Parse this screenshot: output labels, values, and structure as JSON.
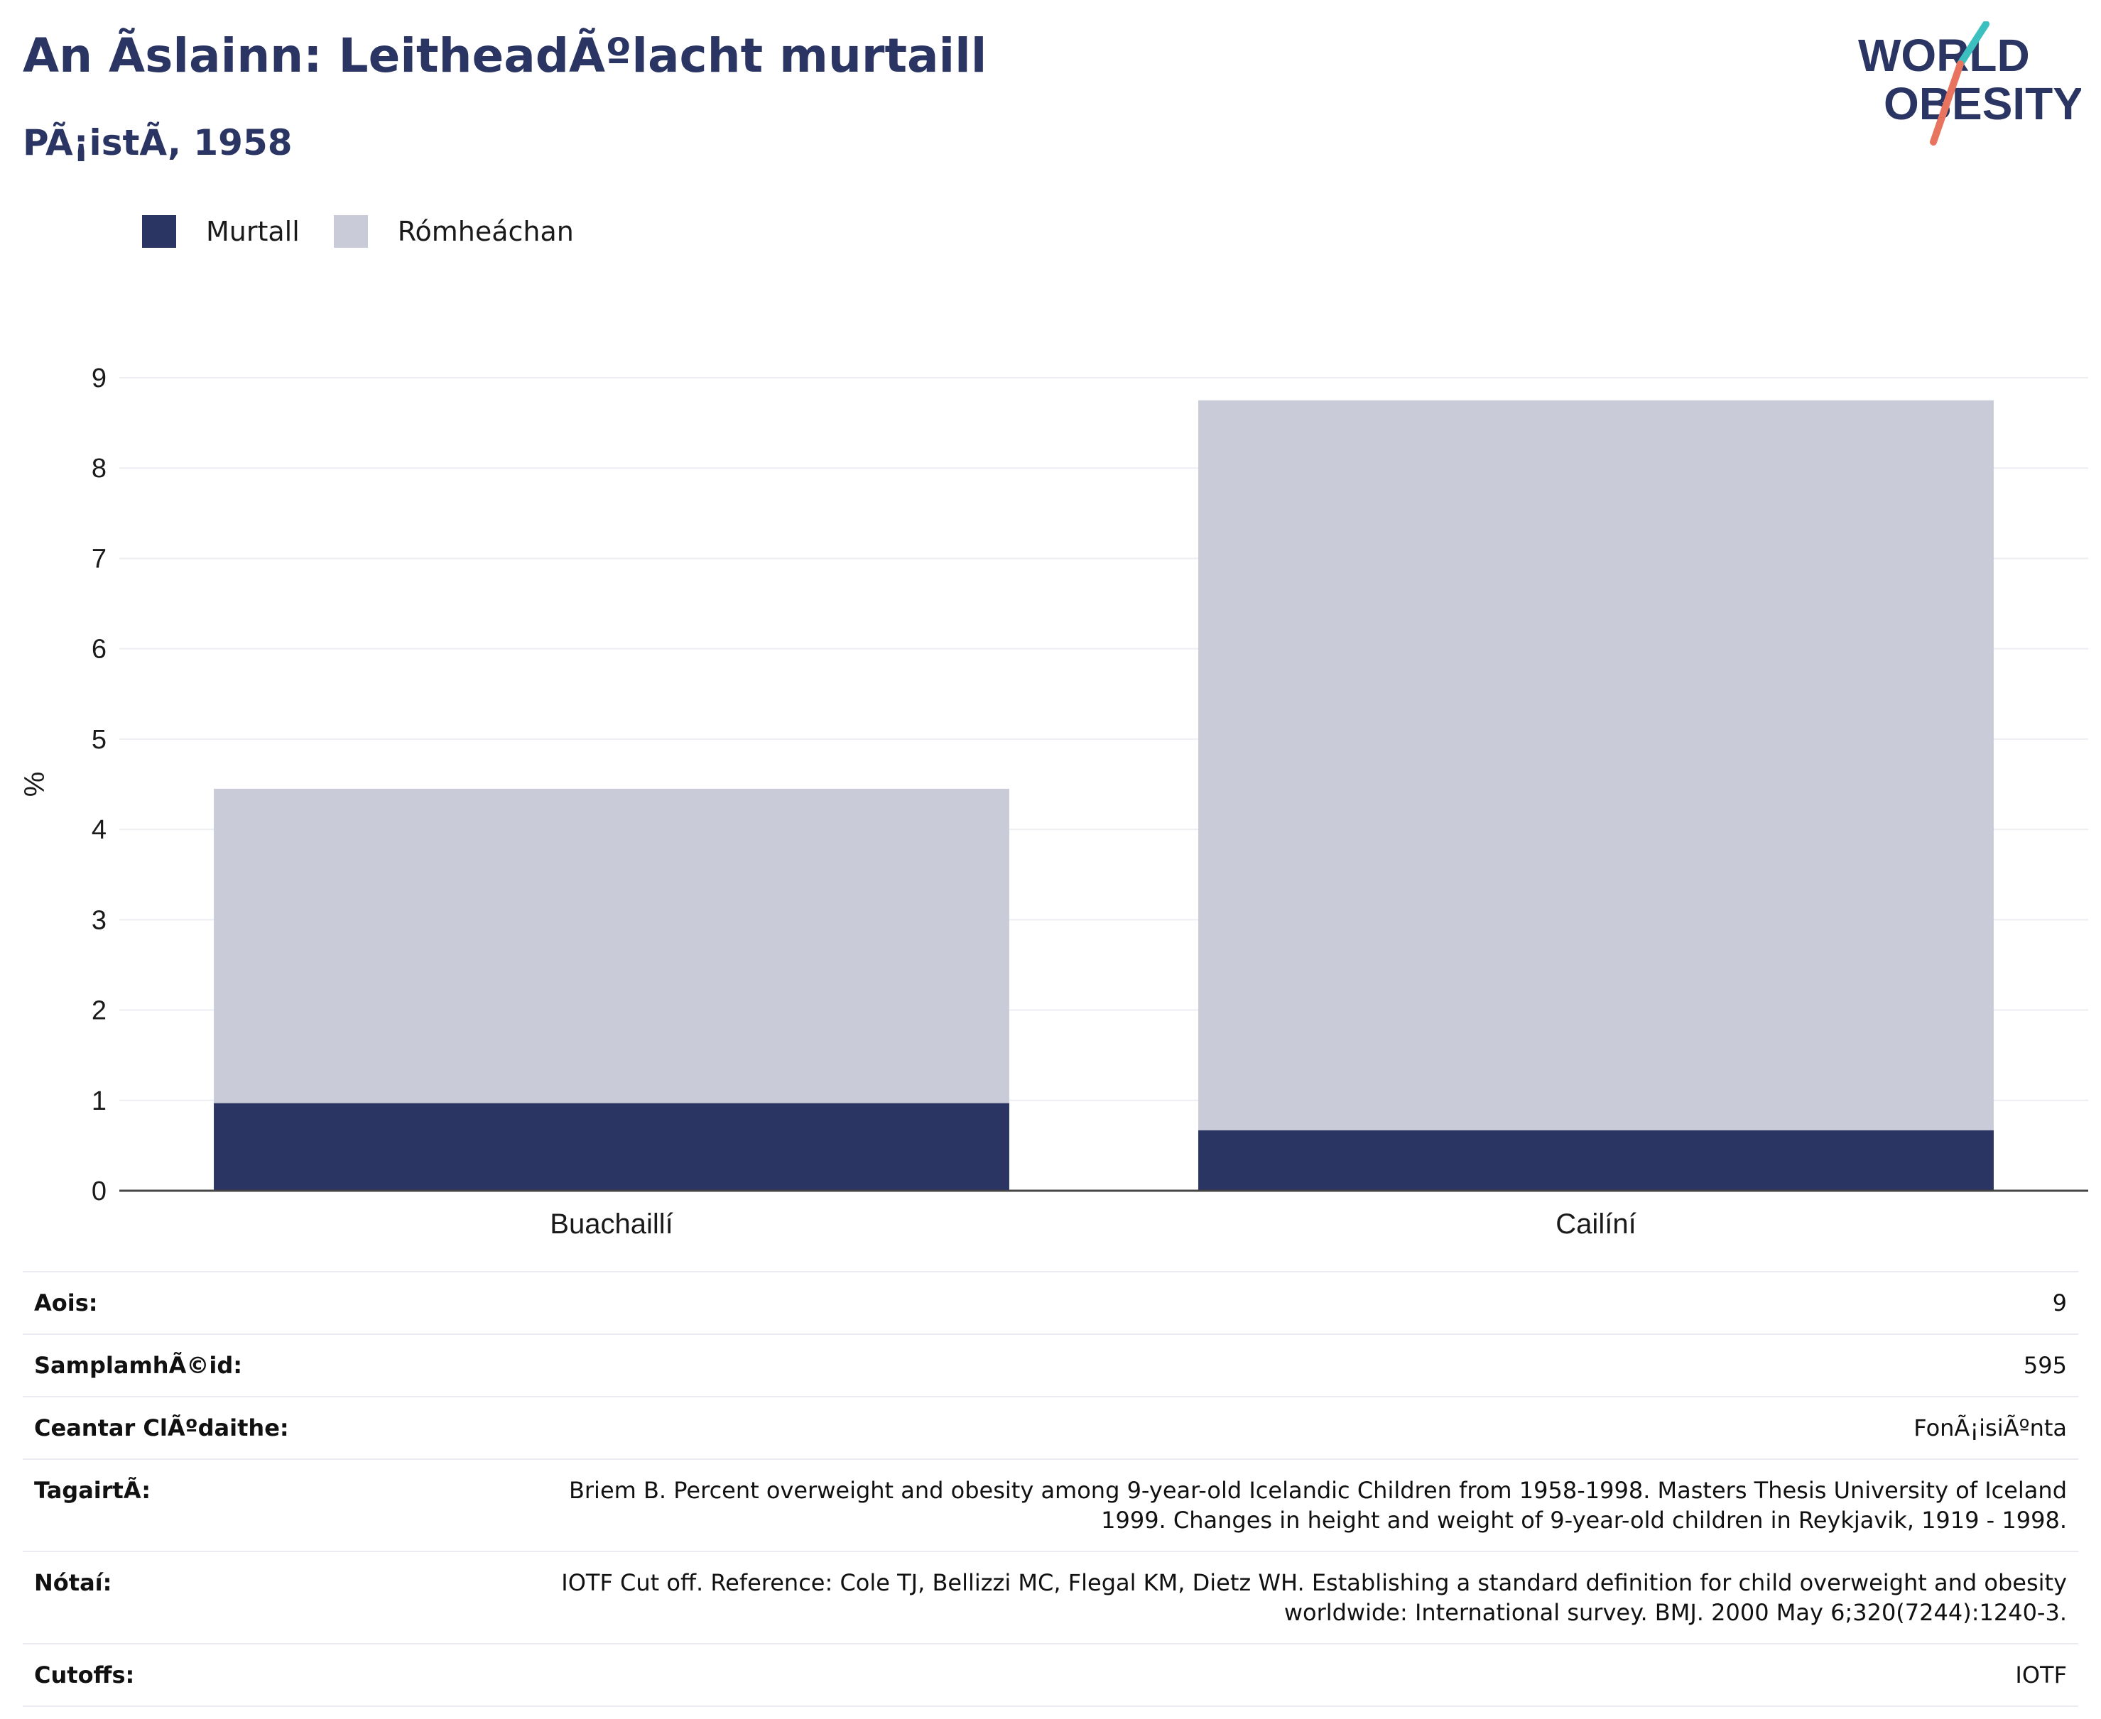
{
  "header": {
    "title": "An Ãslainn: LeitheadÃºlacht murtaill",
    "subtitle": "PÃ¡istÃ, 1958"
  },
  "logo": {
    "line1": "WORLD",
    "line2": "OBESITY",
    "colors": {
      "text": "#2a3563",
      "slash_teal": "#3bbfbf",
      "slash_coral": "#e8735f"
    }
  },
  "legend": {
    "items": [
      {
        "label": "Murtall",
        "color": "#2a3563"
      },
      {
        "label": "Rómheáchan",
        "color": "#c9ccd8"
      }
    ]
  },
  "chart_data": {
    "type": "bar",
    "stacked": true,
    "categories": [
      "Buachaillí",
      "Cailíní"
    ],
    "series": [
      {
        "name": "Murtall",
        "color": "#2a3563",
        "values": [
          0.97,
          0.67
        ]
      },
      {
        "name": "Rómheáchan",
        "color": "#c9ccd8",
        "values": [
          3.48,
          8.08
        ]
      }
    ],
    "ylabel": "%",
    "xlabel": "",
    "ylim": [
      0,
      9
    ],
    "yticks": [
      0,
      1,
      2,
      3,
      4,
      5,
      6,
      7,
      8,
      9
    ],
    "grid": true,
    "legend_position": "top-left"
  },
  "info": [
    {
      "label": "Aois:",
      "value": "9"
    },
    {
      "label": "SamplamhÃ©id:",
      "value": "595"
    },
    {
      "label": "Ceantar ClÃºdaithe:",
      "value": "FonÃ¡isiÃºnta"
    },
    {
      "label": "TagairtÃ:",
      "value": "Briem B. Percent overweight and obesity among 9-year-old Icelandic Children from 1958-1998. Masters Thesis University of Iceland 1999. Changes in height and weight of 9-year-old children in Reykjavik, 1919 - 1998."
    },
    {
      "label": "Nótaí:",
      "value": "IOTF Cut off. Reference: Cole TJ, Bellizzi MC, Flegal KM, Dietz WH. Establishing a standard definition for child overweight and obesity worldwide: International survey. BMJ. 2000 May 6;320(7244):1240-3."
    },
    {
      "label": "Cutoffs:",
      "value": "IOTF"
    }
  ]
}
